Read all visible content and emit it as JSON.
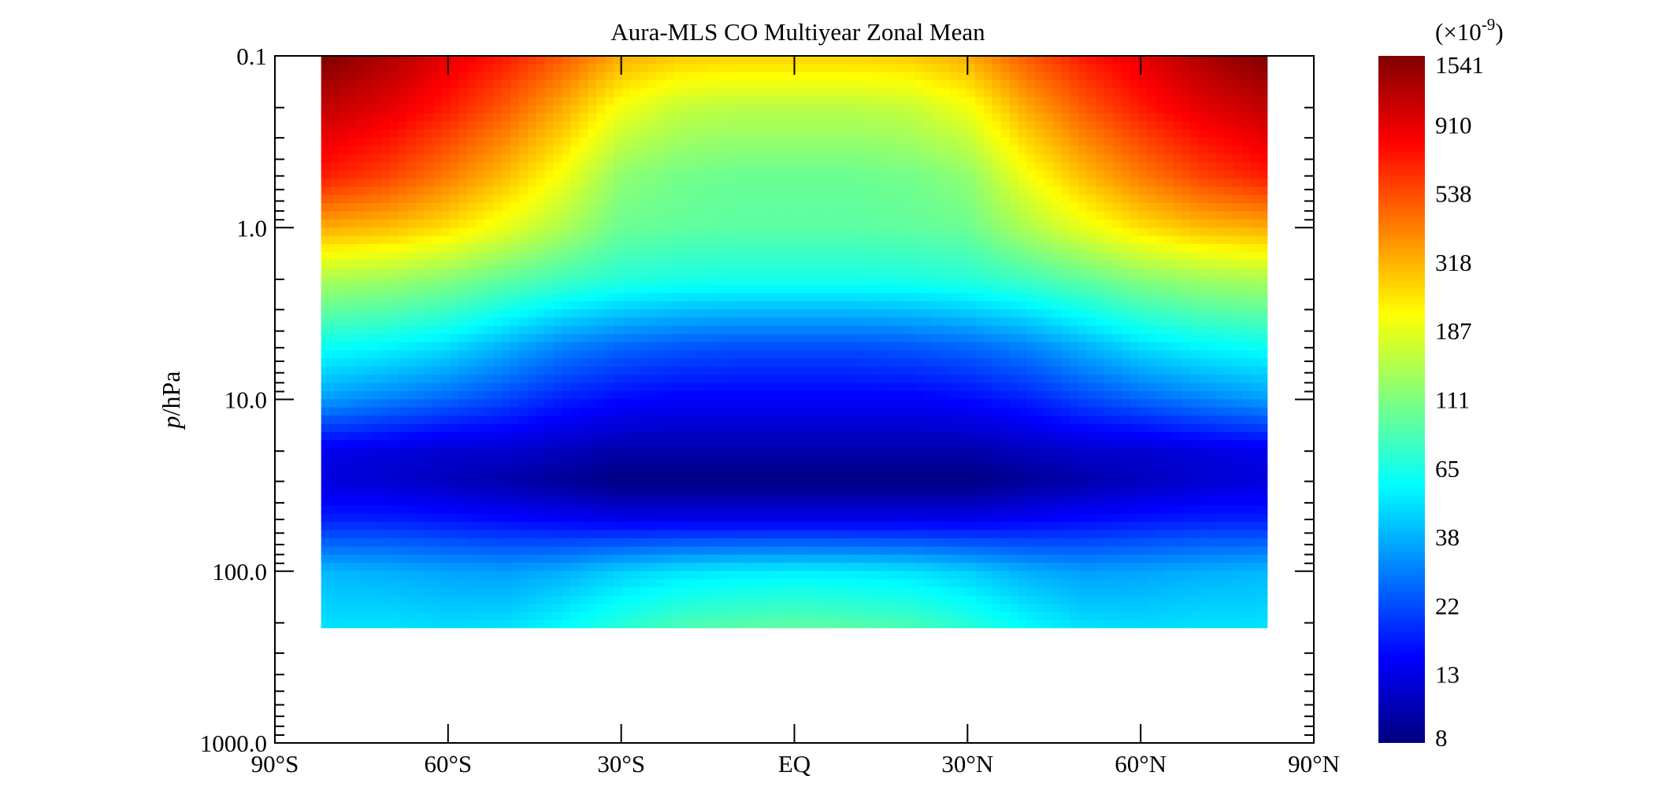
{
  "chart_data": {
    "type": "heatmap",
    "title": "Aura-MLS CO Multiyear Zonal Mean",
    "xlabel": "",
    "ylabel_italic": "p",
    "ylabel_unit": "/hPa",
    "x_range": [
      -90,
      90
    ],
    "x_ticks": [
      -90,
      -60,
      -30,
      0,
      30,
      60,
      90
    ],
    "x_tick_labels": [
      "90°S",
      "60°S",
      "30°S",
      "EQ",
      "30°N",
      "60°N",
      "90°N"
    ],
    "y_scale": "log",
    "y_range": [
      0.1,
      1000.0
    ],
    "y_ticks": [
      0.1,
      1.0,
      10.0,
      100.0,
      1000.0
    ],
    "y_tick_labels": [
      "0.1",
      "1.0",
      "10.0",
      "100.0",
      "1000.0"
    ],
    "data_lat_range": [
      -82,
      82
    ],
    "data_pressure_range": [
      0.1,
      215
    ],
    "lat_grid": [
      -82,
      -70,
      -60,
      -50,
      -40,
      -30,
      -20,
      -10,
      0,
      10,
      20,
      30,
      40,
      50,
      60,
      70,
      82
    ],
    "pressure_grid": [
      0.1,
      0.2,
      0.5,
      1.0,
      2.0,
      5.0,
      10.0,
      20.0,
      30.0,
      50.0,
      100.0,
      150.0,
      215.0
    ],
    "values": [
      [
        1541,
        1200,
        910,
        700,
        500,
        330,
        280,
        270,
        270,
        270,
        280,
        330,
        500,
        700,
        910,
        1200,
        1541
      ],
      [
        1100,
        910,
        700,
        500,
        330,
        200,
        160,
        150,
        150,
        150,
        160,
        200,
        330,
        500,
        700,
        910,
        1100
      ],
      [
        700,
        560,
        420,
        300,
        200,
        120,
        105,
        100,
        100,
        100,
        105,
        120,
        200,
        300,
        420,
        560,
        700
      ],
      [
        330,
        300,
        250,
        190,
        140,
        100,
        95,
        92,
        92,
        92,
        95,
        100,
        140,
        190,
        250,
        300,
        330
      ],
      [
        140,
        130,
        115,
        95,
        80,
        70,
        66,
        65,
        65,
        65,
        66,
        70,
        80,
        95,
        115,
        130,
        140
      ],
      [
        60,
        55,
        48,
        38,
        30,
        26,
        24,
        23,
        23,
        23,
        24,
        26,
        30,
        38,
        48,
        55,
        60
      ],
      [
        35,
        30,
        26,
        22,
        18,
        16,
        15,
        15,
        15,
        15,
        15,
        16,
        18,
        22,
        26,
        30,
        35
      ],
      [
        14,
        13,
        12,
        12,
        11,
        10,
        10,
        10,
        10,
        10,
        10,
        10,
        11,
        12,
        12,
        13,
        14
      ],
      [
        13,
        12,
        11,
        10,
        9,
        8,
        8,
        8,
        8,
        8,
        8,
        8,
        9,
        10,
        11,
        12,
        13
      ],
      [
        18,
        18,
        17,
        16,
        15,
        14,
        14,
        14,
        14,
        14,
        14,
        14,
        15,
        16,
        17,
        18,
        18
      ],
      [
        40,
        38,
        36,
        35,
        38,
        45,
        50,
        52,
        53,
        52,
        50,
        45,
        38,
        35,
        36,
        38,
        40
      ],
      [
        45,
        44,
        42,
        42,
        48,
        58,
        66,
        70,
        72,
        70,
        66,
        58,
        48,
        42,
        42,
        44,
        45
      ],
      [
        50,
        50,
        48,
        50,
        58,
        72,
        85,
        92,
        95,
        92,
        85,
        72,
        58,
        50,
        48,
        50,
        50
      ]
    ],
    "colorbar": {
      "multiplier_label_prefix": "(×10",
      "multiplier_label_exponent": "-9",
      "multiplier_label_suffix": ")",
      "scale": "log",
      "range": [
        8,
        1541
      ],
      "ticks": [
        8,
        13,
        22,
        38,
        65,
        111,
        187,
        318,
        538,
        910,
        1541
      ],
      "tick_labels": [
        "8",
        "13",
        "22",
        "38",
        "65",
        "111",
        "187",
        "318",
        "538",
        "910",
        "1541"
      ],
      "colormap": [
        "#00007f",
        "#0000ff",
        "#007fff",
        "#00ffff",
        "#7fff7f",
        "#ffff00",
        "#ff7f00",
        "#ff0000",
        "#7f0000"
      ]
    }
  }
}
